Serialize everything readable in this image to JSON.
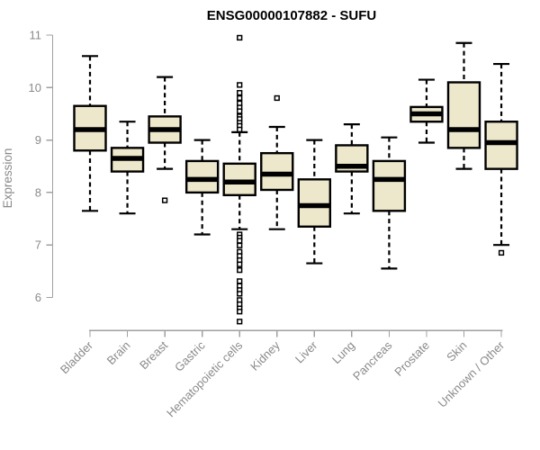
{
  "chart_data": {
    "type": "boxplot",
    "title": "ENSG00000107882 - SUFU",
    "xlabel": "",
    "ylabel": "Expression",
    "ylim": [
      5.4,
      11.1
    ],
    "yticks": [
      11,
      10,
      9,
      8,
      7,
      6
    ],
    "grid": false,
    "legend": false,
    "categories": [
      "Bladder",
      "Brain",
      "Breast",
      "Gastric",
      "Hematopoietic cells",
      "Kidney",
      "Liver",
      "Lung",
      "Pancreas",
      "Prostate",
      "Skin",
      "Unknown / Other"
    ],
    "boxes": [
      {
        "category": "Bladder",
        "whisker_low": 7.65,
        "q1": 8.8,
        "median": 9.2,
        "q3": 9.65,
        "whisker_high": 10.6,
        "outliers": []
      },
      {
        "category": "Brain",
        "whisker_low": 7.6,
        "q1": 8.4,
        "median": 8.65,
        "q3": 8.85,
        "whisker_high": 9.35,
        "outliers": []
      },
      {
        "category": "Breast",
        "whisker_low": 8.45,
        "q1": 8.95,
        "median": 9.2,
        "q3": 9.45,
        "whisker_high": 10.2,
        "outliers": [
          7.85
        ]
      },
      {
        "category": "Gastric",
        "whisker_low": 7.2,
        "q1": 8.0,
        "median": 8.25,
        "q3": 8.6,
        "whisker_high": 9.0,
        "outliers": []
      },
      {
        "category": "Hematopoietic cells",
        "whisker_low": 7.3,
        "q1": 7.95,
        "median": 8.2,
        "q3": 8.55,
        "whisker_high": 9.15,
        "outliers": [
          10.95,
          10.05,
          9.9,
          9.8,
          9.7,
          9.62,
          9.55,
          9.45,
          9.4,
          9.33,
          9.27,
          9.2,
          7.2,
          7.14,
          7.08,
          6.99,
          6.87,
          6.79,
          6.71,
          6.63,
          6.52,
          6.31,
          6.22,
          6.14,
          6.07,
          5.95,
          5.87,
          5.79,
          5.73,
          5.54
        ]
      },
      {
        "category": "Kidney",
        "whisker_low": 7.3,
        "q1": 8.05,
        "median": 8.35,
        "q3": 8.75,
        "whisker_high": 9.25,
        "outliers": [
          9.8
        ]
      },
      {
        "category": "Liver",
        "whisker_low": 6.65,
        "q1": 7.35,
        "median": 7.75,
        "q3": 8.25,
        "whisker_high": 9.0,
        "outliers": []
      },
      {
        "category": "Lung",
        "whisker_low": 7.6,
        "q1": 8.4,
        "median": 8.5,
        "q3": 8.9,
        "whisker_high": 9.3,
        "outliers": []
      },
      {
        "category": "Pancreas",
        "whisker_low": 6.55,
        "q1": 7.65,
        "median": 8.25,
        "q3": 8.6,
        "whisker_high": 9.05,
        "outliers": []
      },
      {
        "category": "Prostate",
        "whisker_low": 8.95,
        "q1": 9.35,
        "median": 9.5,
        "q3": 9.63,
        "whisker_high": 10.15,
        "outliers": []
      },
      {
        "category": "Skin",
        "whisker_low": 8.45,
        "q1": 8.85,
        "median": 9.2,
        "q3": 10.1,
        "whisker_high": 10.85,
        "outliers": []
      },
      {
        "category": "Unknown / Other",
        "whisker_low": 7.0,
        "q1": 8.45,
        "median": 8.95,
        "q3": 9.35,
        "whisker_high": 10.45,
        "outliers": [
          6.85
        ]
      }
    ],
    "colors": {
      "box_fill": "#EDE7CB",
      "box_stroke": "#000000",
      "median": "#000000",
      "whisker": "#000000",
      "outlier_stroke": "#000000",
      "outlier_fill": "#FFFFFF",
      "axis_line": "#A0A0A0",
      "tick_text": "#8A8A8A",
      "title_text": "#000000"
    }
  }
}
